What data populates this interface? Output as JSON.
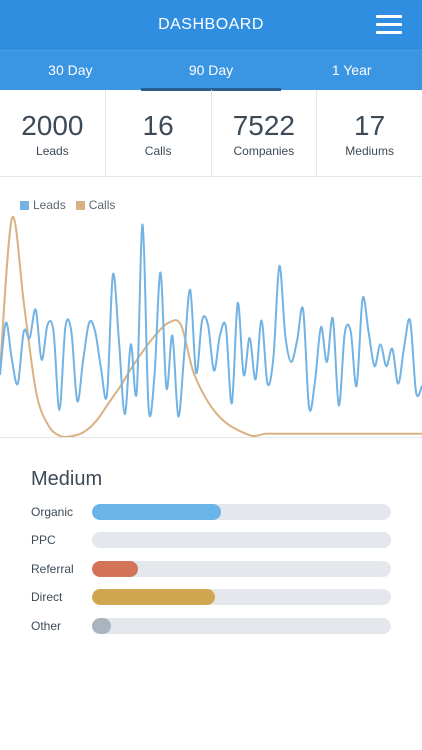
{
  "header": {
    "title": "DASHBOARD",
    "menu_icon": "hamburger-menu-icon"
  },
  "tabs": [
    {
      "label": "30 Day",
      "active": false
    },
    {
      "label": "90 Day",
      "active": true
    },
    {
      "label": "1 Year",
      "active": false
    }
  ],
  "stats": [
    {
      "value": "2000",
      "label": "Leads"
    },
    {
      "value": "16",
      "label": "Calls"
    },
    {
      "value": "7522",
      "label": "Companies"
    },
    {
      "value": "17",
      "label": "Mediums"
    }
  ],
  "colors": {
    "leads": "#72b3e3",
    "calls": "#d9b283",
    "header": "#2f8ee0"
  },
  "chart_data": {
    "type": "line",
    "title": "",
    "xlabel": "",
    "ylabel": "",
    "ylim": [
      0,
      100
    ],
    "grid": false,
    "legend": "top-left",
    "series": [
      {
        "name": "Leads",
        "color": "#72b3e3",
        "values": [
          28,
          52,
          35,
          24,
          48,
          45,
          58,
          35,
          51,
          48,
          12,
          50,
          48,
          16,
          35,
          52,
          48,
          31,
          19,
          74,
          44,
          10,
          42,
          20,
          97,
          13,
          28,
          75,
          22,
          46,
          9,
          38,
          67,
          29,
          53,
          51,
          30,
          46,
          50,
          15,
          61,
          28,
          45,
          26,
          53,
          24,
          36,
          78,
          46,
          34,
          44,
          58,
          13,
          25,
          50,
          34,
          54,
          14,
          47,
          48,
          23,
          63,
          48,
          32,
          42,
          32,
          40,
          24,
          41,
          53,
          20,
          23
        ]
      },
      {
        "name": "Calls",
        "color": "#d9b283",
        "values": [
          30,
          100,
          60,
          20,
          5,
          0,
          0,
          2,
          7,
          15,
          23,
          32,
          40,
          47,
          52,
          51,
          30,
          18,
          10,
          5,
          2,
          0,
          1,
          1,
          1,
          1,
          1,
          1,
          1,
          1,
          1,
          1,
          1,
          1,
          1,
          1
        ]
      }
    ]
  },
  "medium": {
    "title": "Medium",
    "rows": [
      {
        "label": "Organic",
        "fraction": 0.43,
        "color": "#6ab4e8"
      },
      {
        "label": "PPC",
        "fraction": 0.0,
        "color": "#6ab4e8"
      },
      {
        "label": "Referral",
        "fraction": 0.155,
        "color": "#d37458"
      },
      {
        "label": "Direct",
        "fraction": 0.41,
        "color": "#d1a650"
      },
      {
        "label": "Other",
        "fraction": 0.065,
        "color": "#a9b4bf"
      }
    ]
  }
}
